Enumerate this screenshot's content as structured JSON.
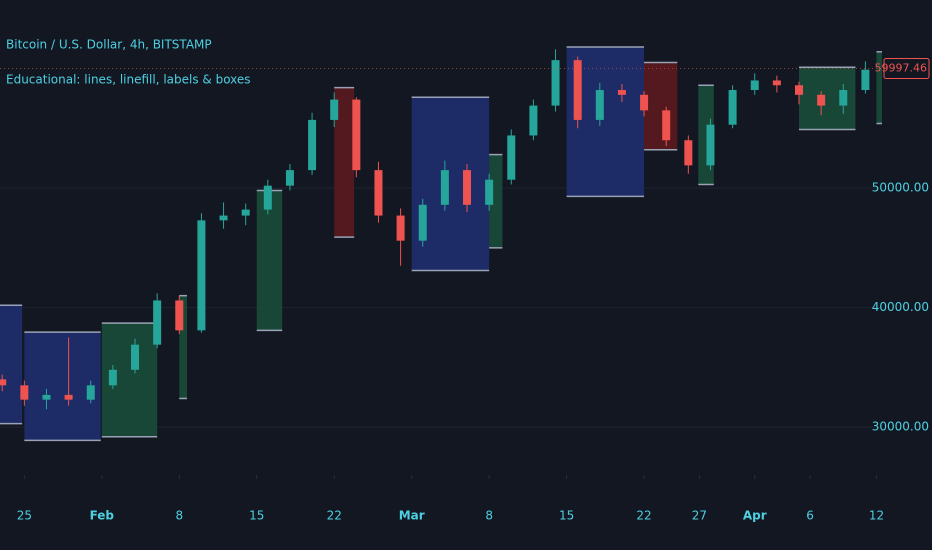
{
  "chart_data": {
    "type": "candlestick",
    "title": "Bitcoin / U.S. Dollar, 4h, BITSTAMP",
    "subtitle": "Educational: lines, linefill, labels & boxes",
    "up_color": "#26a69a",
    "down_color": "#ef5350",
    "x": [
      23,
      25,
      27,
      29,
      31,
      33,
      35,
      37,
      39,
      41,
      43,
      45,
      47,
      49,
      51,
      53,
      55,
      57,
      59,
      61,
      63,
      65,
      67,
      69,
      71,
      73,
      75,
      77,
      79,
      81,
      83,
      85,
      87,
      89,
      91,
      93,
      95,
      97,
      99,
      101
    ],
    "open": [
      34000,
      33500,
      32300,
      32700,
      32300,
      33500,
      34800,
      36900,
      40600,
      38100,
      47300,
      47700,
      48200,
      50200,
      51500,
      55700,
      57400,
      51500,
      47700,
      45600,
      48600,
      51500,
      48600,
      50700,
      54400,
      56900,
      60700,
      55700,
      58200,
      57800,
      56500,
      54000,
      51900,
      55300,
      58200,
      59000,
      58600,
      57800,
      56900,
      58200
    ],
    "high": [
      34400,
      33900,
      33200,
      37500,
      33900,
      35200,
      37400,
      41200,
      41000,
      47900,
      48800,
      48700,
      50700,
      52000,
      56300,
      58000,
      57600,
      52200,
      48300,
      49100,
      52300,
      52000,
      51200,
      54900,
      57400,
      61600,
      61000,
      58800,
      58700,
      58100,
      56800,
      54400,
      55800,
      58600,
      59600,
      59400,
      58900,
      58100,
      58700,
      60600
    ],
    "low": [
      33000,
      31800,
      31500,
      31800,
      32000,
      33200,
      34500,
      36600,
      37800,
      37900,
      46600,
      46900,
      47800,
      49800,
      51100,
      55100,
      50900,
      47100,
      43500,
      45100,
      48100,
      48000,
      48100,
      50300,
      54000,
      56400,
      55000,
      55200,
      57200,
      56000,
      53500,
      51200,
      51500,
      55000,
      57800,
      58000,
      57000,
      56100,
      56200,
      57900
    ],
    "close": [
      33500,
      32300,
      32700,
      32300,
      33500,
      34800,
      36900,
      40600,
      38100,
      47300,
      47700,
      48200,
      50200,
      51500,
      55700,
      57400,
      51500,
      47700,
      45600,
      48600,
      51500,
      48600,
      50700,
      54400,
      56900,
      60700,
      55700,
      58200,
      57800,
      56500,
      54000,
      51900,
      55300,
      58200,
      59000,
      58600,
      57800,
      56900,
      58200,
      59900
    ],
    "boxes": [
      {
        "x": [
          22.8,
          24.8
        ],
        "y": [
          30300,
          40200
        ],
        "color": "#1f2e6e"
      },
      {
        "x": [
          25,
          31.9
        ],
        "y": [
          28900,
          37950
        ],
        "color": "#1f2e6e"
      },
      {
        "x": [
          32,
          37
        ],
        "y": [
          29200,
          38700
        ],
        "color": "#1b4d3a"
      },
      {
        "x": [
          39,
          39.7
        ],
        "y": [
          32400,
          41000
        ],
        "color": "#1b4d3a"
      },
      {
        "x": [
          46,
          48.3
        ],
        "y": [
          38100,
          49800
        ],
        "color": "#1b4d3a"
      },
      {
        "x": [
          53,
          54.8
        ],
        "y": [
          45900,
          58400
        ],
        "color": "#5c1a1e"
      },
      {
        "x": [
          60,
          67
        ],
        "y": [
          43100,
          57600
        ],
        "color": "#1f2e6e"
      },
      {
        "x": [
          67,
          68.2
        ],
        "y": [
          45000,
          52800
        ],
        "color": "#1b4d3a"
      },
      {
        "x": [
          74,
          81
        ],
        "y": [
          49300,
          61800
        ],
        "color": "#1f2e6e"
      },
      {
        "x": [
          81,
          84
        ],
        "y": [
          53200,
          60500
        ],
        "color": "#5c1a1e"
      },
      {
        "x": [
          85.9,
          87.3
        ],
        "y": [
          50300,
          58600
        ],
        "color": "#1b4d3a"
      },
      {
        "x": [
          95,
          100.1
        ],
        "y": [
          54900,
          60100
        ],
        "color": "#1b4d3a"
      },
      {
        "x": [
          102,
          102.5
        ],
        "y": [
          55400,
          61400
        ],
        "color": "#1b4d3a"
      }
    ],
    "last_price": 59997.46,
    "xlim": [
      22.8,
      102.5
    ],
    "xticks": [
      25,
      {
        "value": 32,
        "label": "Feb"
      },
      {
        "value": 39,
        "label": "8"
      },
      {
        "value": 46,
        "label": "15"
      },
      {
        "value": 53,
        "label": "22"
      },
      {
        "value": 60,
        "label": "Mar"
      },
      {
        "value": 67,
        "label": "8"
      },
      {
        "value": 74,
        "label": "15"
      },
      {
        "value": 81,
        "label": "22"
      },
      {
        "value": 86,
        "label": "27"
      },
      {
        "value": 91,
        "label": "Apr"
      },
      {
        "value": 96,
        "label": "6"
      },
      {
        "value": 102,
        "label": "12"
      }
    ],
    "ylim": [
      26000,
      65730
    ],
    "yticks": [
      {
        "value": 30000,
        "label": "30000.00"
      },
      {
        "value": 40000,
        "label": "40000.00"
      },
      {
        "value": 50000,
        "label": "50000.00"
      }
    ],
    "grid": true
  }
}
